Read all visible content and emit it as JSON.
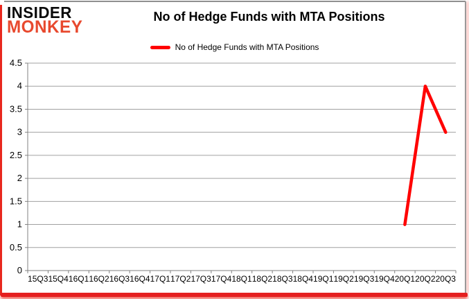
{
  "logo": {
    "line1": "INSIDER",
    "line2": "MONKEY",
    "accent_color": "#e8492e"
  },
  "header": {
    "title": "No of Hedge Funds with MTA Positions"
  },
  "legend": {
    "label": "No of Hedge Funds with MTA Positions",
    "swatch_color": "#ff0000"
  },
  "chart_data": {
    "type": "line",
    "title": "No of Hedge Funds with MTA Positions",
    "categories": [
      "15Q3",
      "15Q4",
      "16Q1",
      "16Q2",
      "16Q3",
      "16Q4",
      "17Q1",
      "17Q2",
      "17Q3",
      "17Q4",
      "18Q1",
      "18Q2",
      "18Q3",
      "18Q4",
      "19Q1",
      "19Q2",
      "19Q3",
      "19Q4",
      "20Q1",
      "20Q2",
      "20Q3"
    ],
    "series": [
      {
        "name": "No of Hedge Funds with MTA Positions",
        "color": "#ff0000",
        "values": [
          null,
          null,
          null,
          null,
          null,
          null,
          null,
          null,
          null,
          null,
          null,
          null,
          null,
          null,
          null,
          null,
          null,
          null,
          1,
          4,
          3
        ]
      }
    ],
    "xlabel": "",
    "ylabel": "",
    "ylim": [
      0,
      4.5
    ],
    "ytick_step": 0.5,
    "grid": true,
    "legend_position": "top",
    "colors": {
      "gridline": "#a0a0a0",
      "axis": "#808080",
      "tick_text": "#000000"
    }
  }
}
